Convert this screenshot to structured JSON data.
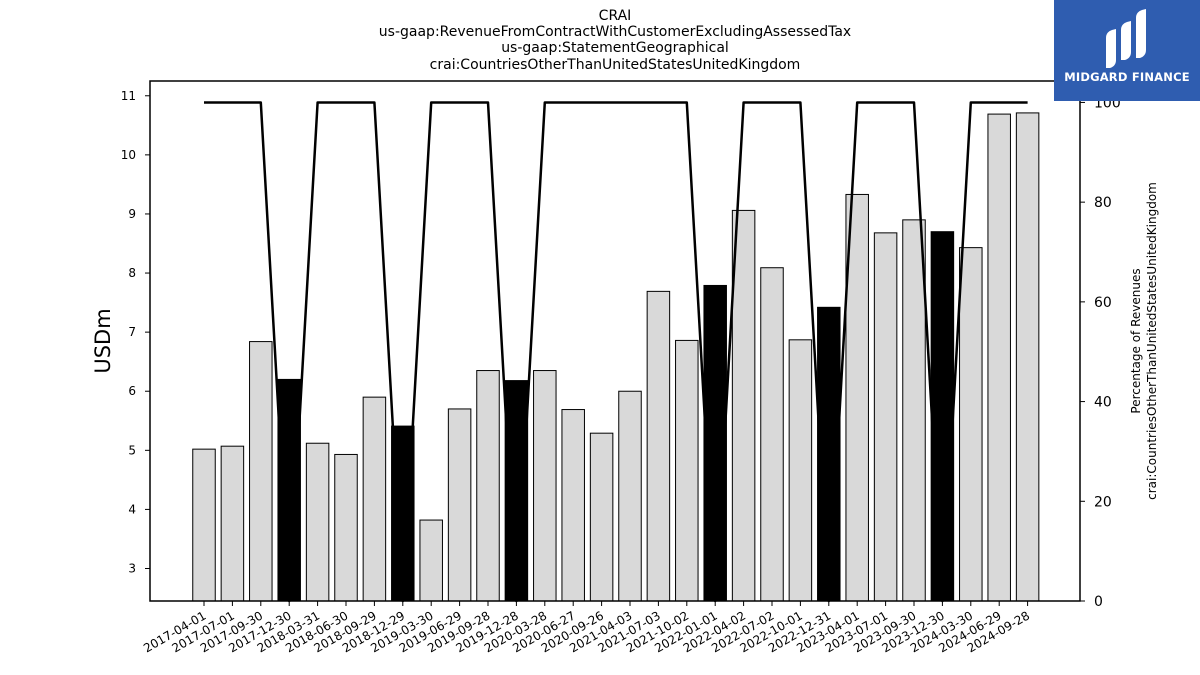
{
  "title_lines": [
    "CRAI",
    "us-gaap:RevenueFromContractWithCustomerExcludingAssessedTax",
    "us-gaap:StatementGeographical",
    "crai:CountriesOtherThanUnitedStatesUnitedKingdom"
  ],
  "logo": {
    "text": "MIDGARD FINANCE",
    "background": "#2f5db0"
  },
  "colors": {
    "bar": "#d9d9d9",
    "bar_highlight": "#000000",
    "line": "#000000"
  },
  "chart_data": {
    "type": "bar",
    "title": "CRAI",
    "xlabel": "",
    "ylabel": "USDm",
    "y2label_lines": [
      "Percentage of Revenues",
      "crai:CountriesOtherThanUnitedStatesUnitedKingdom"
    ],
    "ylim": [
      2.45,
      11.25
    ],
    "y2lim": [
      0,
      104.3
    ],
    "yticks": [
      3,
      4,
      5,
      6,
      7,
      8,
      9,
      10,
      11
    ],
    "y2ticks": [
      0,
      20,
      40,
      60,
      80,
      100
    ],
    "grid": false,
    "categories": [
      "2017-04-01",
      "2017-07-01",
      "2017-09-30",
      "2017-12-30",
      "2018-03-31",
      "2018-06-30",
      "2018-09-29",
      "2018-12-29",
      "2019-03-30",
      "2019-06-29",
      "2019-09-28",
      "2019-12-28",
      "2020-03-28",
      "2020-06-27",
      "2020-09-26",
      "2021-04-03",
      "2021-07-03",
      "2021-10-02",
      "2022-01-01",
      "2022-04-02",
      "2022-07-02",
      "2022-10-01",
      "2022-12-31",
      "2023-04-01",
      "2023-07-01",
      "2023-09-30",
      "2023-12-30",
      "2024-03-30",
      "2024-06-29",
      "2024-09-28"
    ],
    "series": [
      {
        "kind": "bar",
        "values": [
          5.02,
          5.07,
          6.84,
          6.2,
          5.12,
          4.93,
          5.9,
          5.41,
          3.82,
          5.7,
          6.35,
          6.18,
          6.35,
          5.69,
          5.29,
          6.0,
          7.69,
          6.86,
          7.79,
          9.06,
          8.09,
          6.87,
          7.42,
          9.33,
          8.68,
          8.9,
          8.7,
          8.43,
          10.69,
          10.71
        ],
        "highlight": [
          false,
          false,
          false,
          true,
          false,
          false,
          false,
          true,
          false,
          false,
          false,
          true,
          false,
          false,
          false,
          false,
          false,
          false,
          true,
          false,
          false,
          false,
          true,
          false,
          false,
          false,
          true,
          false,
          false,
          false
        ]
      },
      {
        "kind": "line",
        "axis": "right",
        "values": [
          100,
          100,
          100,
          0,
          100,
          100,
          100,
          0,
          100,
          100,
          100,
          0,
          100,
          100,
          100,
          100,
          100,
          100,
          0,
          100,
          100,
          100,
          0,
          100,
          100,
          100,
          0,
          100,
          100,
          100
        ]
      }
    ]
  }
}
